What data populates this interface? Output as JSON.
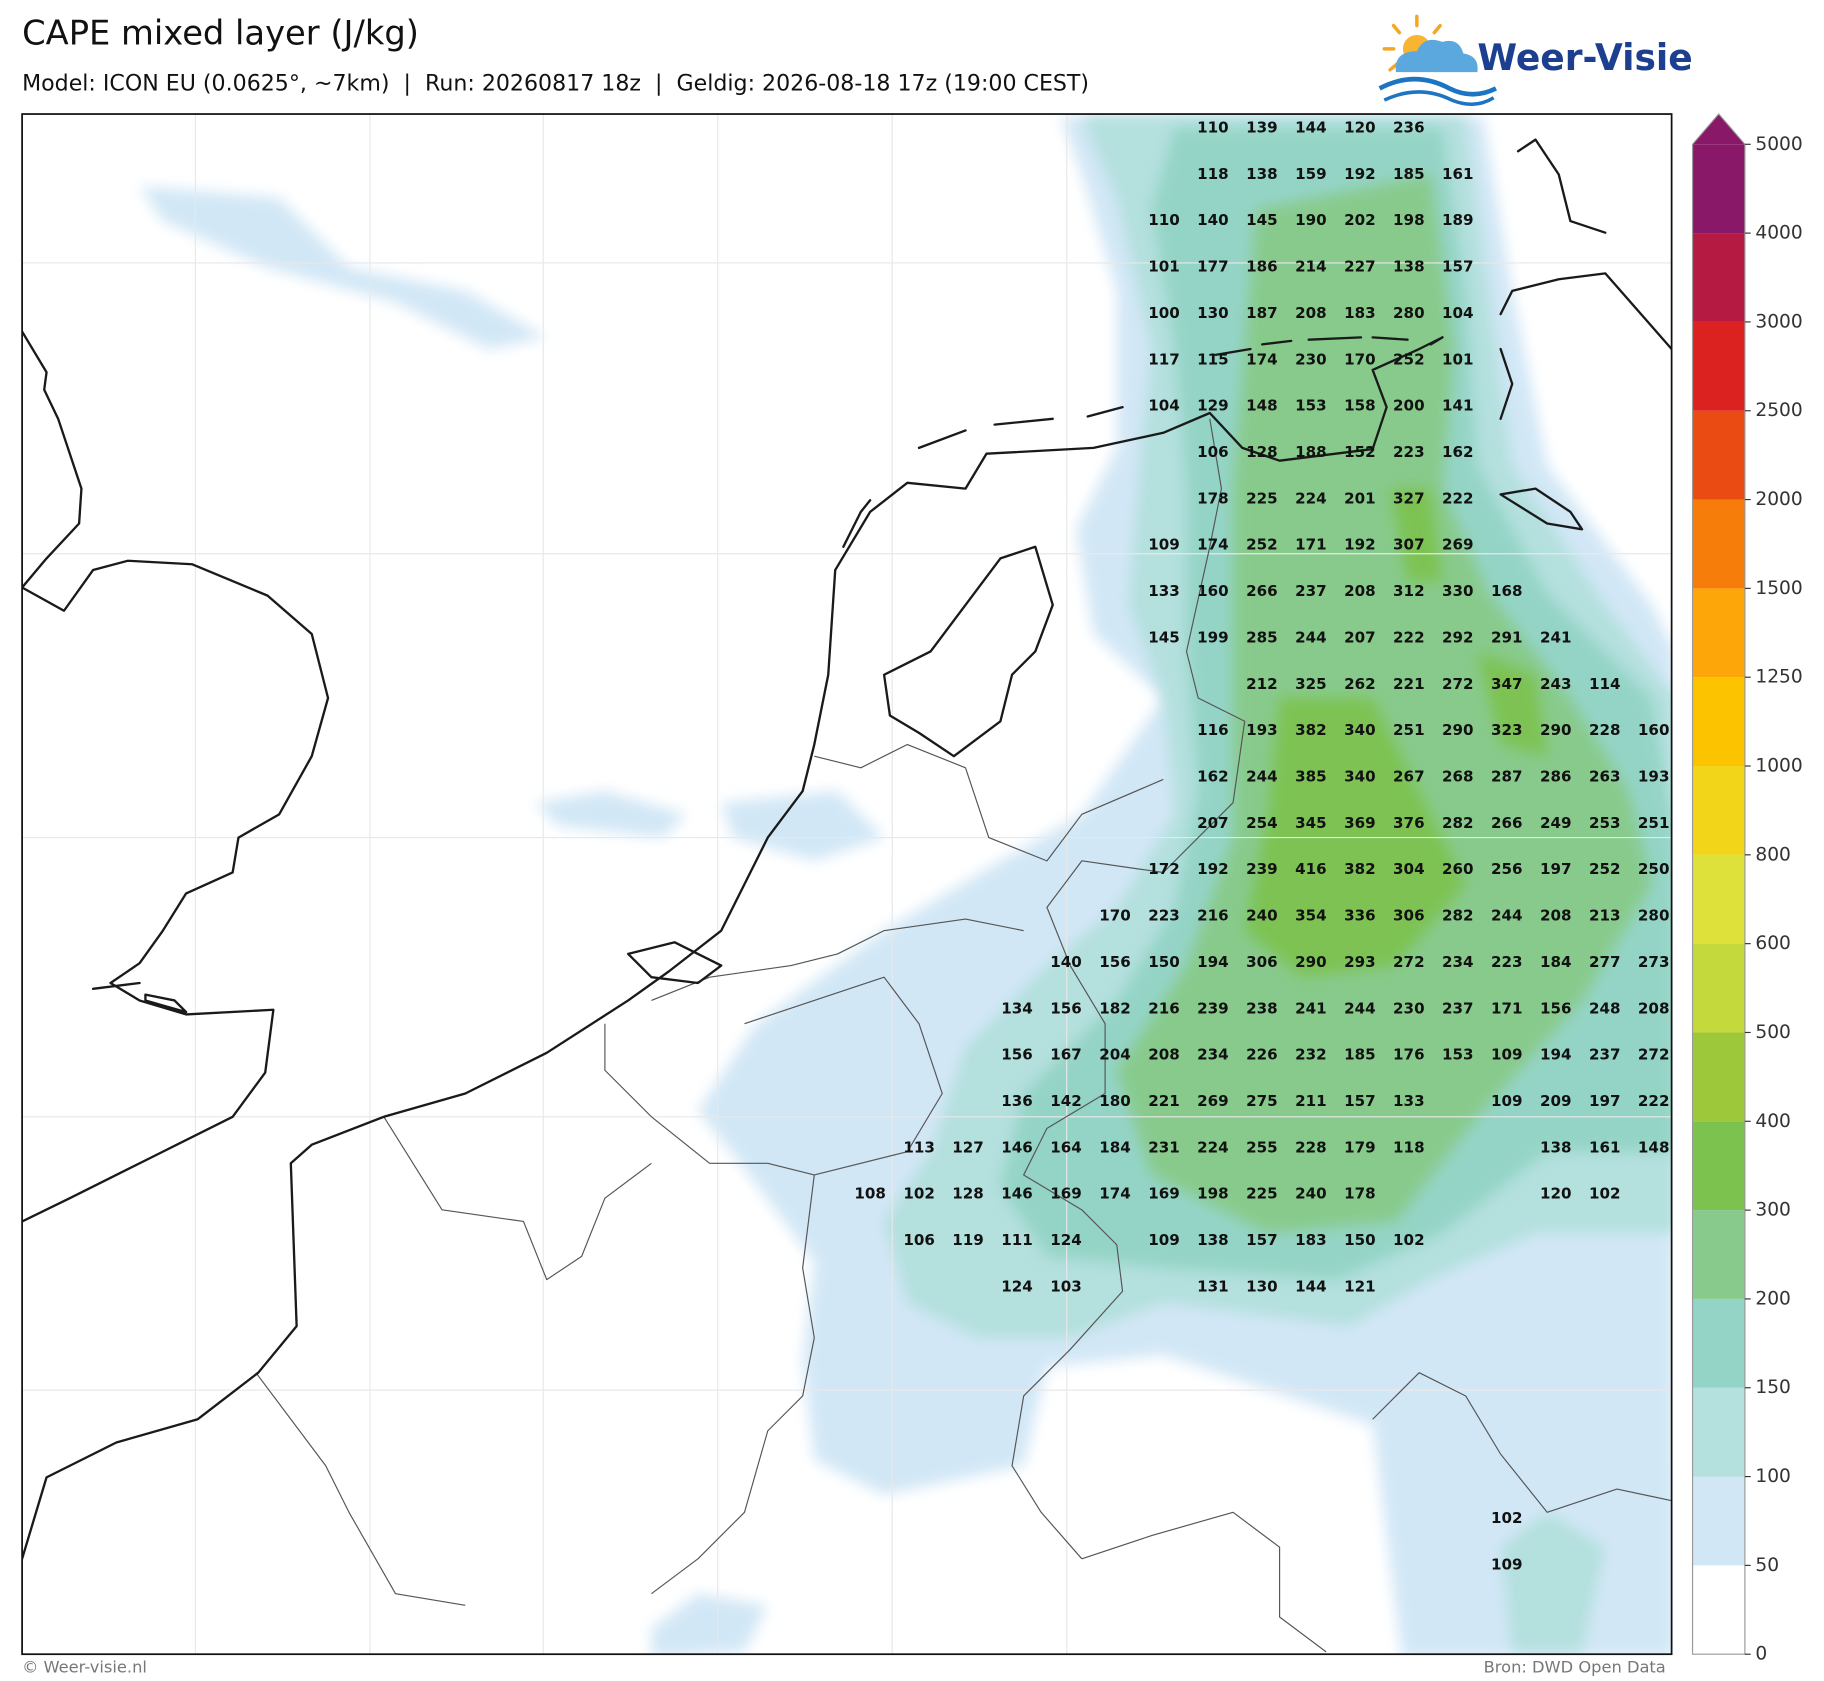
{
  "header": {
    "title": "CAPE mixed layer (J/kg)",
    "subtitle": "Model: ICON EU (0.0625°, ~7km)  |  Run: 20260817 18z  |  Geldig: 2026-08-18 17z (19:00 CEST)"
  },
  "logo": {
    "text": "Weer-Visie"
  },
  "map": {
    "grid_values": [
      [
        null,
        null,
        null,
        null,
        null,
        null,
        null,
        110,
        139,
        144,
        120,
        236
      ],
      [
        null,
        null,
        null,
        null,
        null,
        null,
        null,
        118,
        138,
        159,
        192,
        185,
        161
      ],
      [
        null,
        null,
        null,
        null,
        null,
        null,
        110,
        140,
        145,
        190,
        202,
        198,
        189
      ],
      [
        null,
        null,
        null,
        null,
        null,
        null,
        101,
        177,
        186,
        214,
        227,
        138,
        157
      ],
      [
        null,
        null,
        null,
        null,
        null,
        null,
        100,
        130,
        187,
        208,
        183,
        280,
        104
      ],
      [
        null,
        null,
        null,
        null,
        null,
        null,
        117,
        115,
        174,
        230,
        170,
        252,
        101
      ],
      [
        null,
        null,
        null,
        null,
        null,
        null,
        104,
        129,
        148,
        153,
        158,
        200,
        141
      ],
      [
        null,
        null,
        null,
        null,
        null,
        null,
        null,
        106,
        128,
        188,
        152,
        223,
        162
      ],
      [
        null,
        null,
        null,
        null,
        null,
        null,
        null,
        178,
        225,
        224,
        201,
        327,
        222
      ],
      [
        null,
        null,
        null,
        null,
        null,
        null,
        109,
        174,
        252,
        171,
        192,
        307,
        269
      ],
      [
        null,
        null,
        null,
        null,
        null,
        null,
        133,
        160,
        266,
        237,
        208,
        312,
        330,
        168
      ],
      [
        null,
        null,
        null,
        null,
        null,
        null,
        145,
        199,
        285,
        244,
        207,
        222,
        292,
        291,
        241
      ],
      [
        null,
        null,
        null,
        null,
        null,
        null,
        null,
        null,
        212,
        325,
        262,
        221,
        272,
        347,
        243,
        114
      ],
      [
        null,
        null,
        null,
        null,
        null,
        null,
        null,
        116,
        193,
        382,
        340,
        251,
        290,
        323,
        290,
        228,
        160
      ],
      [
        null,
        null,
        null,
        null,
        null,
        null,
        null,
        162,
        244,
        385,
        340,
        267,
        268,
        287,
        286,
        263,
        193
      ],
      [
        null,
        null,
        null,
        null,
        null,
        null,
        null,
        207,
        254,
        345,
        369,
        376,
        282,
        266,
        249,
        253,
        251
      ],
      [
        null,
        null,
        null,
        null,
        null,
        null,
        172,
        192,
        239,
        416,
        382,
        304,
        260,
        256,
        197,
        252,
        250
      ],
      [
        null,
        null,
        null,
        null,
        null,
        170,
        223,
        216,
        240,
        354,
        336,
        306,
        282,
        244,
        208,
        213,
        280
      ],
      [
        null,
        null,
        null,
        null,
        140,
        156,
        150,
        194,
        306,
        290,
        293,
        272,
        234,
        223,
        184,
        277,
        273
      ],
      [
        null,
        null,
        null,
        134,
        156,
        182,
        216,
        239,
        238,
        241,
        244,
        230,
        237,
        171,
        156,
        248,
        208
      ],
      [
        null,
        null,
        null,
        156,
        167,
        204,
        208,
        234,
        226,
        232,
        185,
        176,
        153,
        109,
        194,
        237,
        272
      ],
      [
        null,
        null,
        null,
        136,
        142,
        180,
        221,
        269,
        275,
        211,
        157,
        133,
        null,
        109,
        209,
        197,
        222
      ],
      [
        null,
        113,
        127,
        146,
        164,
        184,
        231,
        224,
        255,
        228,
        179,
        118,
        null,
        null,
        138,
        161,
        148
      ],
      [
        108,
        102,
        128,
        146,
        169,
        174,
        169,
        198,
        225,
        240,
        178,
        null,
        null,
        null,
        120,
        102
      ],
      [
        null,
        106,
        119,
        111,
        124,
        null,
        109,
        138,
        157,
        183,
        150,
        102
      ],
      [
        null,
        null,
        null,
        124,
        103,
        null,
        null,
        131,
        130,
        144,
        121
      ],
      [],
      [],
      [],
      [],
      [
        null,
        null,
        null,
        null,
        null,
        null,
        null,
        null,
        null,
        null,
        null,
        null,
        null,
        102
      ],
      [
        null,
        null,
        null,
        null,
        null,
        null,
        null,
        null,
        null,
        null,
        null,
        null,
        null,
        109
      ]
    ]
  },
  "colorbar": {
    "ticks": [
      0,
      50,
      100,
      150,
      200,
      300,
      400,
      500,
      600,
      800,
      1000,
      1250,
      1500,
      2000,
      2500,
      3000,
      4000,
      5000
    ],
    "colors": [
      "#ffffff",
      "#d2e7f6",
      "#b4e0de",
      "#94d4c6",
      "#88ca8c",
      "#7cc24e",
      "#9cc83a",
      "#c4da3c",
      "#dee13a",
      "#f2d419",
      "#fbc300",
      "#fca60a",
      "#f77d0a",
      "#ea4b12",
      "#dc2121",
      "#b51b42",
      "#8a1869"
    ]
  },
  "footer": {
    "left": "© Weer-visie.nl",
    "right": "Bron: DWD Open Data"
  }
}
